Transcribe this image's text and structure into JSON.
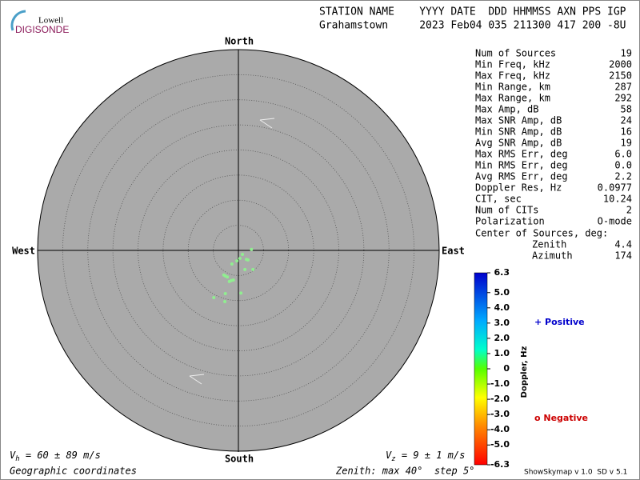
{
  "header": {
    "logo_top": "Lowell",
    "logo_bottom": "DIGISONDE",
    "labels": "STATION NAME    YYYY DATE  DDD HHMMSS AXN PPS IGP",
    "values": "Grahamstown     2023 Feb04 035 211300 417 200 -8U"
  },
  "chart_data": {
    "type": "skymap",
    "zenith_max": 40,
    "zenith_step": 5,
    "directions": {
      "north": "North",
      "south": "South",
      "east": "East",
      "west": "West"
    },
    "color": "#90ee90",
    "x": [
      2.6,
      0.3,
      1.6,
      1.9,
      -1.3,
      2.9,
      1.3,
      -2.9,
      -2.6,
      -1.0,
      -1.8,
      -1.4,
      0.5,
      -2.6,
      -4.9,
      -2.7,
      0.8,
      -0.3,
      -2.2
    ],
    "y": [
      0.2,
      -1.6,
      -1.8,
      -1.9,
      -2.7,
      -3.8,
      -3.8,
      -4.9,
      -5.1,
      -5.9,
      -6.2,
      -6.0,
      -8.5,
      -8.6,
      -9.4,
      -10.2,
      -0.8,
      -2.1,
      -5.3
    ],
    "colorbar": {
      "title": "Doppler, Hz",
      "lim": [
        -6.3,
        6.3
      ],
      "ticks": [
        6.3,
        {
          "value": 5,
          "label": "5.0"
        },
        {
          "value": 4,
          "label": "4.0"
        },
        {
          "value": 3,
          "label": "3.0"
        },
        {
          "value": 2,
          "label": "2.0"
        },
        {
          "value": 1,
          "label": "1.0"
        },
        0,
        {
          "value": -1,
          "label": "-1.0"
        },
        {
          "value": -2,
          "label": "-2.0"
        },
        {
          "value": -3,
          "label": "-3.0"
        },
        {
          "value": -4,
          "label": "-4.0"
        },
        {
          "value": -5,
          "label": "-5.0"
        },
        -6.3
      ]
    },
    "legend": {
      "positive": "+ Positive",
      "negative": "o Negative"
    }
  },
  "stats": [
    [
      "Num of Sources",
      "19"
    ],
    [
      "Min Freq, kHz",
      "2000"
    ],
    [
      "Max Freq, kHz",
      "2150"
    ],
    [
      "Min Range, km",
      "287"
    ],
    [
      "Max Range, km",
      "292"
    ],
    [
      "Max Amp, dB",
      "58"
    ],
    [
      "Max SNR Amp, dB",
      "24"
    ],
    [
      "Min SNR Amp, dB",
      "16"
    ],
    [
      "Avg SNR Amp, dB",
      "19"
    ],
    [
      "Max RMS Err, deg",
      "6.0"
    ],
    [
      "Min RMS Err, deg",
      "0.0"
    ],
    [
      "Avg RMS Err, deg",
      "2.2"
    ],
    [
      "Doppler Res, Hz",
      "0.0977"
    ],
    [
      "CIT, sec",
      "10.24"
    ],
    [
      "Num of CITs",
      "2"
    ],
    [
      "Polarization",
      "O-mode"
    ]
  ],
  "center": {
    "title": "Center of Sources, deg:",
    "rows": [
      [
        "Zenith",
        "4.4"
      ],
      [
        "Azimuth",
        "174"
      ]
    ]
  },
  "footer": {
    "vh_label": "V",
    "vh_sub": "h",
    "vh_text": " = 60 ± 89 m/s",
    "vz_label": "V",
    "vz_sub": "z",
    "vz_text": " = 9 ± 1 m/s",
    "coordinates": "Geographic coordinates",
    "zenith": "Zenith: max 40°  step 5°",
    "version": "ShowSkymap v 1.0  SD v 5.1"
  }
}
